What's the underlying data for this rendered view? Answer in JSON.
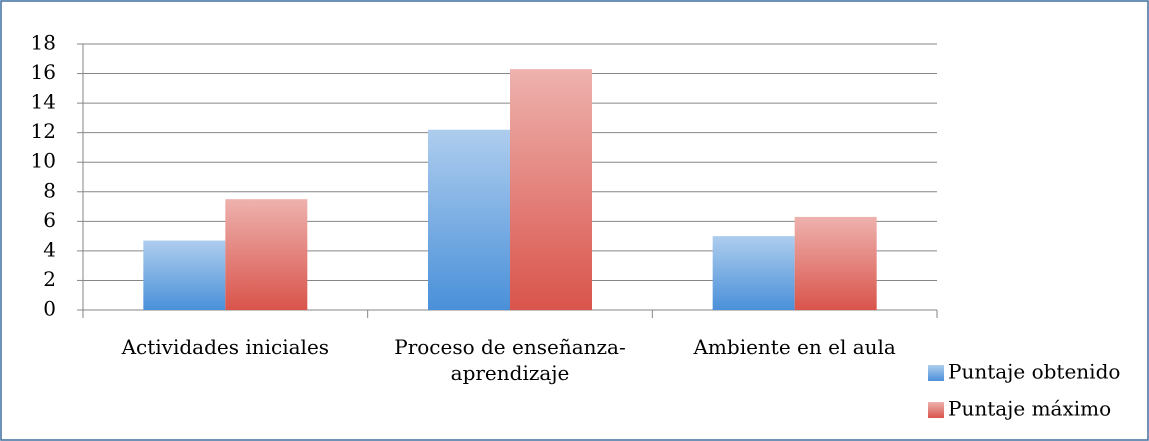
{
  "chart_data": {
    "type": "bar",
    "categories": [
      "Actividades iniciales",
      "Proceso de enseñanza-aprendizaje",
      "Ambiente en el aula"
    ],
    "series": [
      {
        "name": "Puntaje obtenido",
        "color": "#4a90d9",
        "values": [
          4.7,
          12.2,
          5.0
        ]
      },
      {
        "name": "Puntaje máximo",
        "color": "#d9544b",
        "values": [
          7.5,
          16.3,
          6.3
        ]
      }
    ],
    "ylim": [
      0,
      18
    ],
    "yticks": [
      0,
      2,
      4,
      6,
      8,
      10,
      12,
      14,
      16,
      18
    ],
    "grid": true,
    "legend": "right"
  }
}
